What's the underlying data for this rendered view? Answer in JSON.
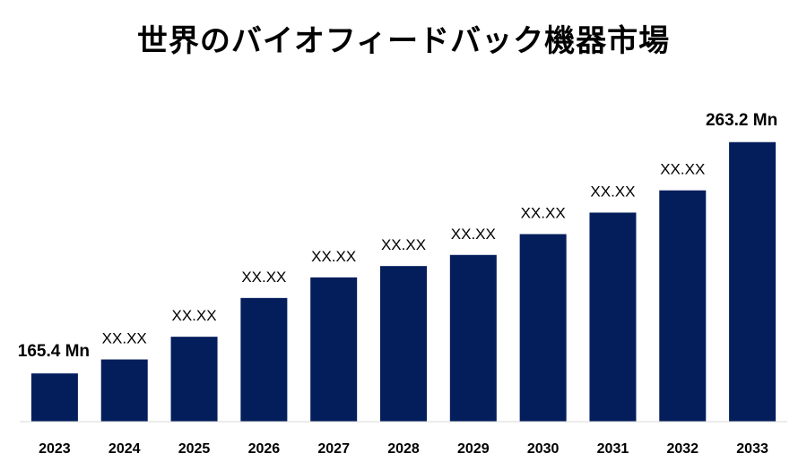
{
  "chart_data": {
    "type": "bar",
    "title": "世界のバイオフィードバック機器市場",
    "categories": [
      "2023",
      "2024",
      "2025",
      "2026",
      "2027",
      "2028",
      "2029",
      "2030",
      "2031",
      "2032",
      "2033"
    ],
    "values": [
      165.4,
      171.3,
      180.9,
      197.3,
      206.0,
      210.8,
      215.5,
      224.3,
      233.4,
      242.8,
      263.2
    ],
    "data_labels": [
      "165.4 Mn",
      "XX.XX",
      "XX.XX",
      "XX.XX",
      "XX.XX",
      "XX.XX",
      "XX.XX",
      "XX.XX",
      "XX.XX",
      "XX.XX",
      "263.2 Mn"
    ],
    "xlabel": "",
    "ylabel": "",
    "ylim": [
      145,
      265
    ],
    "grid": false,
    "bar_color": "#041e5c",
    "axis_color": "#d9d9d9"
  }
}
